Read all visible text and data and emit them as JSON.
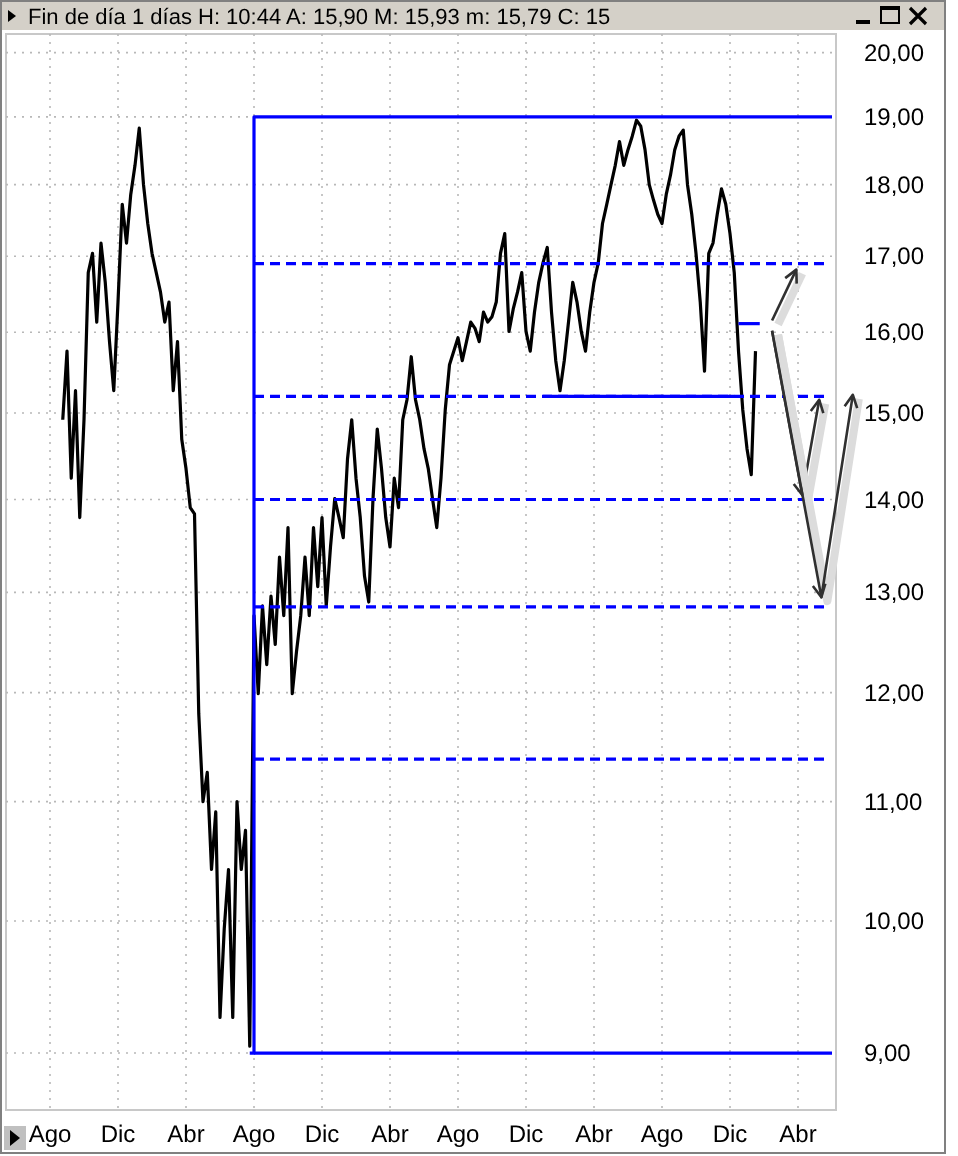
{
  "chart_data": {
    "type": "line",
    "title": "Fin de día 1 días H: 10:44 A: 15,90 M: 15,93 m: 15,79 C: 15",
    "categories": [
      "Ago",
      null,
      null,
      null,
      null,
      null,
      null,
      null,
      null,
      null,
      null,
      null,
      null,
      null,
      null,
      null,
      "Dic",
      null,
      null,
      null,
      null,
      null,
      null,
      null,
      null,
      null,
      null,
      null,
      null,
      null,
      null,
      null,
      "Abr",
      null,
      null,
      null,
      null,
      null,
      null,
      null,
      null,
      null,
      null,
      null,
      null,
      null,
      null,
      null,
      "Ago",
      null,
      null,
      null,
      null,
      null,
      null,
      null,
      null,
      null,
      null,
      null,
      null,
      null,
      null,
      null,
      "Dic",
      null,
      null,
      null,
      null,
      null,
      null,
      null,
      null,
      null,
      null,
      null,
      null,
      null,
      null,
      null,
      "Abr",
      null,
      null,
      null,
      null,
      null,
      null,
      null,
      null,
      null,
      null,
      null,
      null,
      null,
      null,
      null,
      "Ago",
      null,
      null,
      null,
      null,
      null,
      null,
      null,
      null,
      null,
      null,
      null,
      null,
      null,
      null,
      null,
      "Dic",
      null,
      null,
      null,
      null,
      null,
      null,
      null,
      null,
      null,
      null,
      null,
      null,
      null,
      null,
      null,
      "Abr",
      null,
      null,
      null,
      null,
      null,
      null,
      null,
      null,
      null,
      null,
      null,
      null,
      null,
      null,
      null,
      "Ago",
      null,
      null,
      null,
      null,
      null,
      null,
      null,
      null,
      null,
      null,
      null,
      null,
      null,
      null,
      null,
      "Dic",
      null,
      null,
      null,
      null,
      null,
      null,
      null,
      null,
      null,
      null,
      null,
      null,
      null,
      null,
      null,
      "Abr",
      null,
      null,
      null,
      null,
      null,
      null,
      null,
      null
    ],
    "ylim": [
      8.6,
      20.3
    ],
    "yticks": [
      {
        "value": 9,
        "label": "9,00"
      },
      {
        "value": 10,
        "label": "10,00"
      },
      {
        "value": 11,
        "label": "11,00"
      },
      {
        "value": 12,
        "label": "12,00"
      },
      {
        "value": 13,
        "label": "13,00"
      },
      {
        "value": 14,
        "label": "14,00"
      },
      {
        "value": 15,
        "label": "15,00"
      },
      {
        "value": 16,
        "label": "16,00"
      },
      {
        "value": 17,
        "label": "17,00"
      },
      {
        "value": 18,
        "label": "18,00"
      },
      {
        "value": 19,
        "label": "19,00"
      },
      {
        "value": 20,
        "label": "20,00"
      }
    ],
    "log": true,
    "grid": true,
    "series": [
      {
        "color": "#000000",
        "line_style": "solid",
        "values": [
          null,
          null,
          null,
          14.92,
          15.76,
          14.24,
          15.27,
          13.8,
          14.92,
          16.78,
          17.04,
          16.13,
          17.18,
          16.65,
          15.88,
          15.27,
          16.39,
          17.72,
          17.18,
          17.86,
          18.28,
          18.83,
          18.0,
          17.45,
          17.04,
          16.78,
          16.52,
          16.13,
          16.39,
          15.27,
          15.88,
          14.69,
          14.35,
          13.91,
          13.84,
          11.8,
          11.0,
          11.26,
          10.42,
          10.91,
          9.26,
          9.94,
          10.42,
          9.26,
          11.0,
          10.42,
          10.75,
          9.05,
          12.76,
          11.99,
          12.86,
          12.27,
          12.96,
          12.47,
          13.37,
          12.76,
          13.69,
          11.99,
          12.4,
          12.76,
          13.37,
          12.76,
          13.69,
          13.06,
          13.8,
          12.86,
          13.48,
          14.01,
          13.8,
          13.58,
          14.46,
          14.92,
          14.24,
          13.8,
          13.17,
          12.9,
          14.01,
          14.81,
          14.35,
          13.8,
          13.48,
          14.24,
          13.91,
          14.92,
          15.16,
          15.69,
          15.16,
          14.92,
          14.58,
          14.35,
          14.01,
          13.69,
          14.24,
          15.04,
          15.59,
          15.76,
          15.93,
          15.64,
          15.88,
          16.13,
          16.05,
          15.88,
          16.26,
          16.13,
          16.2,
          16.39,
          17.04,
          17.31,
          16.01,
          16.3,
          16.52,
          16.78,
          16.01,
          15.76,
          16.26,
          16.65,
          16.91,
          17.12,
          16.26,
          15.64,
          15.27,
          15.64,
          16.13,
          16.65,
          16.39,
          16.01,
          15.76,
          16.26,
          16.65,
          16.91,
          17.45,
          17.72,
          18.0,
          18.28,
          18.63,
          18.28,
          18.51,
          18.71,
          18.95,
          18.86,
          18.51,
          18.0,
          17.78,
          17.58,
          17.45,
          17.86,
          18.14,
          18.51,
          18.71,
          18.8,
          18.0,
          17.58,
          17.04,
          16.39,
          15.51,
          17.04,
          17.18,
          17.58,
          17.94,
          17.72,
          17.31,
          16.78,
          15.76,
          15.04,
          14.58,
          14.28,
          15.76,
          null,
          null,
          null,
          null,
          null,
          null,
          null,
          null,
          null,
          null,
          null,
          null,
          null,
          null,
          null,
          null,
          null,
          null
        ]
      },
      {
        "type": "step",
        "color": "#0000ff",
        "line_style": "solid",
        "values": [
          null,
          null,
          null,
          null,
          null,
          null,
          null,
          null,
          null,
          null,
          null,
          null,
          null,
          null,
          null,
          null,
          null,
          null,
          null,
          null,
          null,
          null,
          null,
          null,
          null,
          null,
          null,
          null,
          null,
          null,
          null,
          null,
          null,
          null,
          null,
          null,
          null,
          null,
          null,
          null,
          null,
          null,
          null,
          null,
          null,
          null,
          null,
          9,
          19,
          19,
          19,
          19,
          19,
          19,
          19,
          19,
          19,
          19,
          19,
          19,
          19,
          19,
          19,
          19,
          19,
          19,
          19,
          19,
          19,
          19,
          19,
          19,
          19,
          19,
          19,
          19,
          19,
          19,
          19,
          19,
          19,
          19,
          19,
          19,
          19,
          19,
          19,
          19,
          19,
          19,
          19,
          19,
          19,
          19,
          19,
          19,
          19,
          19,
          19,
          19,
          19,
          19,
          19,
          19,
          19,
          19,
          19,
          19,
          19,
          19,
          19,
          19,
          19,
          19,
          19,
          19,
          19,
          19,
          19,
          19,
          19,
          19,
          19,
          19,
          19,
          19,
          19,
          19,
          19,
          19,
          19,
          19,
          19,
          19,
          19,
          19,
          19,
          19,
          19,
          19,
          19,
          19,
          19,
          19,
          19,
          19,
          19,
          19,
          19,
          19,
          19,
          19,
          19,
          19,
          19,
          19,
          19,
          19,
          19,
          19,
          19,
          19,
          19,
          19,
          19,
          19,
          19,
          19,
          19,
          19,
          19,
          19,
          19,
          19,
          19,
          19,
          19,
          19,
          19,
          19,
          19,
          19,
          19,
          19,
          19
        ]
      },
      {
        "color": "#0000ff",
        "line_style": "solid",
        "values": [
          null,
          null,
          null,
          null,
          null,
          null,
          null,
          null,
          null,
          null,
          null,
          null,
          null,
          null,
          null,
          null,
          null,
          null,
          null,
          null,
          null,
          null,
          null,
          null,
          null,
          null,
          null,
          null,
          null,
          null,
          null,
          null,
          null,
          null,
          null,
          null,
          null,
          null,
          null,
          null,
          null,
          null,
          null,
          null,
          null,
          null,
          null,
          null,
          9,
          9,
          9,
          9,
          9,
          9,
          9,
          9,
          9,
          9,
          9,
          9,
          9,
          9,
          9,
          9,
          9,
          9,
          9,
          9,
          9,
          9,
          9,
          9,
          9,
          9,
          9,
          9,
          9,
          9,
          9,
          9,
          9,
          9,
          9,
          9,
          9,
          9,
          9,
          9,
          9,
          9,
          9,
          9,
          9,
          9,
          9,
          9,
          9,
          9,
          9,
          9,
          9,
          9,
          9,
          9,
          9,
          9,
          9,
          9,
          9,
          9,
          9,
          9,
          9,
          9,
          9,
          9,
          9,
          9,
          9,
          9,
          9,
          9,
          9,
          9,
          9,
          9,
          9,
          9,
          9,
          9,
          9,
          9,
          9,
          9,
          9,
          9,
          9,
          9,
          9,
          9,
          9,
          9,
          9,
          9,
          9,
          9,
          9,
          9,
          9,
          9,
          9,
          9,
          9,
          9,
          9,
          9,
          9,
          9,
          9,
          9,
          9,
          9,
          9,
          9,
          9,
          9,
          9,
          9,
          9,
          9,
          9,
          9,
          9,
          9,
          9,
          9,
          9,
          9,
          9,
          9,
          9,
          9,
          9,
          9,
          9
        ]
      },
      {
        "color": "#0000ff",
        "line_style": "dashed",
        "values": [
          null,
          null,
          null,
          null,
          null,
          null,
          null,
          null,
          null,
          null,
          null,
          null,
          null,
          null,
          null,
          null,
          null,
          null,
          null,
          null,
          null,
          null,
          null,
          null,
          null,
          null,
          null,
          null,
          null,
          null,
          null,
          null,
          null,
          null,
          null,
          null,
          null,
          null,
          null,
          null,
          null,
          null,
          null,
          null,
          null,
          null,
          null,
          null,
          16.9,
          16.9,
          16.9,
          16.9,
          16.9,
          16.9,
          16.9,
          16.9,
          16.9,
          16.9,
          16.9,
          16.9,
          16.9,
          16.9,
          16.9,
          16.9,
          16.9,
          16.9,
          16.9,
          16.9,
          16.9,
          16.9,
          16.9,
          16.9,
          16.9,
          16.9,
          16.9,
          16.9,
          16.9,
          16.9,
          16.9,
          16.9,
          16.9,
          16.9,
          16.9,
          16.9,
          16.9,
          16.9,
          16.9,
          16.9,
          16.9,
          16.9,
          16.9,
          16.9,
          16.9,
          16.9,
          16.9,
          16.9,
          16.9,
          16.9,
          16.9,
          16.9,
          16.9,
          16.9,
          16.9,
          16.9,
          16.9,
          16.9,
          16.9,
          16.9,
          16.9,
          16.9,
          16.9,
          16.9,
          16.9,
          16.9,
          16.9,
          16.9,
          16.9,
          16.9,
          16.9,
          16.9,
          16.9,
          16.9,
          16.9,
          16.9,
          16.9,
          16.9,
          16.9,
          16.9,
          16.9,
          16.9,
          16.9,
          16.9,
          16.9,
          16.9,
          16.9,
          16.9,
          16.9,
          16.9,
          16.9,
          16.9,
          16.9,
          16.9,
          16.9,
          16.9,
          16.9,
          16.9,
          16.9,
          16.9,
          16.9,
          16.9,
          16.9,
          16.9,
          16.9,
          16.9,
          16.9,
          16.9,
          16.9,
          16.9,
          16.9,
          16.9,
          16.9,
          16.9,
          16.9,
          16.9,
          16.9,
          16.9,
          16.9,
          16.9,
          16.9,
          16.9,
          16.9,
          16.9,
          16.9,
          16.9,
          16.9,
          16.9,
          16.9,
          16.9,
          16.9,
          16.9,
          16.9,
          16.9,
          16.9,
          16.9,
          null
        ]
      },
      {
        "color": "#0000ff",
        "line_style": "dashed",
        "values": [
          null,
          null,
          null,
          null,
          null,
          null,
          null,
          null,
          null,
          null,
          null,
          null,
          null,
          null,
          null,
          null,
          null,
          null,
          null,
          null,
          null,
          null,
          null,
          null,
          null,
          null,
          null,
          null,
          null,
          null,
          null,
          null,
          null,
          null,
          null,
          null,
          null,
          null,
          null,
          null,
          null,
          null,
          null,
          null,
          null,
          null,
          null,
          null,
          15.2,
          15.2,
          15.2,
          15.2,
          15.2,
          15.2,
          15.2,
          15.2,
          15.2,
          15.2,
          15.2,
          15.2,
          15.2,
          15.2,
          15.2,
          15.2,
          15.2,
          15.2,
          15.2,
          15.2,
          15.2,
          15.2,
          15.2,
          15.2,
          15.2,
          15.2,
          15.2,
          15.2,
          15.2,
          15.2,
          15.2,
          15.2,
          15.2,
          15.2,
          15.2,
          15.2,
          15.2,
          15.2,
          15.2,
          15.2,
          15.2,
          15.2,
          15.2,
          15.2,
          15.2,
          15.2,
          15.2,
          15.2,
          15.2,
          15.2,
          15.2,
          15.2,
          15.2,
          15.2,
          15.2,
          15.2,
          15.2,
          15.2,
          15.2,
          15.2,
          15.2,
          15.2,
          15.2,
          15.2,
          15.2,
          15.2,
          15.2,
          15.2,
          15.2,
          15.2,
          15.2,
          15.2,
          15.2,
          15.2,
          15.2,
          15.2,
          15.2,
          15.2,
          15.2,
          15.2,
          15.2,
          15.2,
          15.2,
          15.2,
          15.2,
          15.2,
          15.2,
          15.2,
          15.2,
          15.2,
          15.2,
          15.2,
          15.2,
          15.2,
          15.2,
          15.2,
          15.2,
          15.2,
          15.2,
          15.2,
          15.2,
          15.2,
          15.2,
          15.2,
          15.2,
          15.2,
          15.2,
          15.2,
          15.2,
          15.2,
          15.2,
          15.2,
          15.2,
          15.2,
          15.2,
          15.2,
          15.2,
          15.2,
          15.2,
          15.2,
          15.2,
          15.2,
          15.2,
          15.2,
          15.2,
          15.2,
          15.2,
          15.2,
          15.2,
          15.2,
          15.2,
          15.2,
          15.2,
          15.2,
          15.2,
          15.2,
          null
        ]
      },
      {
        "color": "#0000ff",
        "line_style": "dashed",
        "values": [
          null,
          null,
          null,
          null,
          null,
          null,
          null,
          null,
          null,
          null,
          null,
          null,
          null,
          null,
          null,
          null,
          null,
          null,
          null,
          null,
          null,
          null,
          null,
          null,
          null,
          null,
          null,
          null,
          null,
          null,
          null,
          null,
          null,
          null,
          null,
          null,
          null,
          null,
          null,
          null,
          null,
          null,
          null,
          null,
          null,
          null,
          null,
          null,
          14,
          14,
          14,
          14,
          14,
          14,
          14,
          14,
          14,
          14,
          14,
          14,
          14,
          14,
          14,
          14,
          14,
          14,
          14,
          14,
          14,
          14,
          14,
          14,
          14,
          14,
          14,
          14,
          14,
          14,
          14,
          14,
          14,
          14,
          14,
          14,
          14,
          14,
          14,
          14,
          14,
          14,
          14,
          14,
          14,
          14,
          14,
          14,
          14,
          14,
          14,
          14,
          14,
          14,
          14,
          14,
          14,
          14,
          14,
          14,
          14,
          14,
          14,
          14,
          14,
          14,
          14,
          14,
          14,
          14,
          14,
          14,
          14,
          14,
          14,
          14,
          14,
          14,
          14,
          14,
          14,
          14,
          14,
          14,
          14,
          14,
          14,
          14,
          14,
          14,
          14,
          14,
          14,
          14,
          14,
          14,
          14,
          14,
          14,
          14,
          14,
          14,
          14,
          14,
          14,
          14,
          14,
          14,
          14,
          14,
          14,
          14,
          14,
          14,
          14,
          14,
          14,
          14,
          14,
          14,
          14,
          14,
          14,
          14,
          14,
          14,
          14,
          14,
          14,
          14,
          14,
          14,
          14,
          14,
          14,
          14,
          null
        ]
      },
      {
        "color": "#0000ff",
        "line_style": "dashed",
        "values": [
          null,
          null,
          null,
          null,
          null,
          null,
          null,
          null,
          null,
          null,
          null,
          null,
          null,
          null,
          null,
          null,
          null,
          null,
          null,
          null,
          null,
          null,
          null,
          null,
          null,
          null,
          null,
          null,
          null,
          null,
          null,
          null,
          null,
          null,
          null,
          null,
          null,
          null,
          null,
          null,
          null,
          null,
          null,
          null,
          null,
          null,
          null,
          null,
          12.85,
          12.85,
          12.85,
          12.85,
          12.85,
          12.85,
          12.85,
          12.85,
          12.85,
          12.85,
          12.85,
          12.85,
          12.85,
          12.85,
          12.85,
          12.85,
          12.85,
          12.85,
          12.85,
          12.85,
          12.85,
          12.85,
          12.85,
          12.85,
          12.85,
          12.85,
          12.85,
          12.85,
          12.85,
          12.85,
          12.85,
          12.85,
          12.85,
          12.85,
          12.85,
          12.85,
          12.85,
          12.85,
          12.85,
          12.85,
          12.85,
          12.85,
          12.85,
          12.85,
          12.85,
          12.85,
          12.85,
          12.85,
          12.85,
          12.85,
          12.85,
          12.85,
          12.85,
          12.85,
          12.85,
          12.85,
          12.85,
          12.85,
          12.85,
          12.85,
          12.85,
          12.85,
          12.85,
          12.85,
          12.85,
          12.85,
          12.85,
          12.85,
          12.85,
          12.85,
          12.85,
          12.85,
          12.85,
          12.85,
          12.85,
          12.85,
          12.85,
          12.85,
          12.85,
          12.85,
          12.85,
          12.85,
          12.85,
          12.85,
          12.85,
          12.85,
          12.85,
          12.85,
          12.85,
          12.85,
          12.85,
          12.85,
          12.85,
          12.85,
          12.85,
          12.85,
          12.85,
          12.85,
          12.85,
          12.85,
          12.85,
          12.85,
          12.85,
          12.85,
          12.85,
          12.85,
          12.85,
          12.85,
          12.85,
          12.85,
          12.85,
          12.85,
          12.85,
          12.85,
          12.85,
          12.85,
          12.85,
          12.85,
          12.85,
          12.85,
          12.85,
          12.85,
          12.85,
          12.85,
          12.85,
          12.85,
          12.85,
          12.85,
          12.85,
          12.85,
          12.85,
          12.85,
          12.85,
          12.85,
          12.85,
          12.85,
          null
        ]
      },
      {
        "color": "#0000ff",
        "line_style": "dashed",
        "values": [
          null,
          null,
          null,
          null,
          null,
          null,
          null,
          null,
          null,
          null,
          null,
          null,
          null,
          null,
          null,
          null,
          null,
          null,
          null,
          null,
          null,
          null,
          null,
          null,
          null,
          null,
          null,
          null,
          null,
          null,
          null,
          null,
          null,
          null,
          null,
          null,
          null,
          null,
          null,
          null,
          null,
          null,
          null,
          null,
          null,
          null,
          null,
          null,
          11.38,
          11.38,
          11.38,
          11.38,
          11.38,
          11.38,
          11.38,
          11.38,
          11.38,
          11.38,
          11.38,
          11.38,
          11.38,
          11.38,
          11.38,
          11.38,
          11.38,
          11.38,
          11.38,
          11.38,
          11.38,
          11.38,
          11.38,
          11.38,
          11.38,
          11.38,
          11.38,
          11.38,
          11.38,
          11.38,
          11.38,
          11.38,
          11.38,
          11.38,
          11.38,
          11.38,
          11.38,
          11.38,
          11.38,
          11.38,
          11.38,
          11.38,
          11.38,
          11.38,
          11.38,
          11.38,
          11.38,
          11.38,
          11.38,
          11.38,
          11.38,
          11.38,
          11.38,
          11.38,
          11.38,
          11.38,
          11.38,
          11.38,
          11.38,
          11.38,
          11.38,
          11.38,
          11.38,
          11.38,
          11.38,
          11.38,
          11.38,
          11.38,
          11.38,
          11.38,
          11.38,
          11.38,
          11.38,
          11.38,
          11.38,
          11.38,
          11.38,
          11.38,
          11.38,
          11.38,
          11.38,
          11.38,
          11.38,
          11.38,
          11.38,
          11.38,
          11.38,
          11.38,
          11.38,
          11.38,
          11.38,
          11.38,
          11.38,
          11.38,
          11.38,
          11.38,
          11.38,
          11.38,
          11.38,
          11.38,
          11.38,
          11.38,
          11.38,
          11.38,
          11.38,
          11.38,
          11.38,
          11.38,
          11.38,
          11.38,
          11.38,
          11.38,
          11.38,
          11.38,
          11.38,
          11.38,
          11.38,
          11.38,
          11.38,
          11.38,
          11.38,
          11.38,
          11.38,
          11.38,
          11.38,
          11.38,
          11.38,
          11.38,
          11.38,
          11.38,
          11.38,
          11.38,
          11.38,
          11.38,
          11.38,
          11.38,
          null
        ]
      },
      {
        "color": "#0000ff",
        "line_style": "solid",
        "values": [
          null,
          null,
          null,
          null,
          null,
          null,
          null,
          null,
          null,
          null,
          null,
          null,
          null,
          null,
          null,
          null,
          null,
          null,
          null,
          null,
          null,
          null,
          null,
          null,
          null,
          null,
          null,
          null,
          null,
          null,
          null,
          null,
          null,
          null,
          null,
          null,
          null,
          null,
          null,
          null,
          null,
          null,
          null,
          null,
          null,
          null,
          null,
          null,
          null,
          null,
          null,
          null,
          null,
          null,
          null,
          null,
          null,
          null,
          null,
          null,
          null,
          null,
          null,
          null,
          null,
          null,
          null,
          null,
          null,
          null,
          null,
          null,
          null,
          null,
          null,
          null,
          null,
          null,
          null,
          null,
          null,
          null,
          null,
          null,
          null,
          null,
          null,
          null,
          null,
          null,
          null,
          null,
          null,
          null,
          null,
          null,
          null,
          null,
          null,
          null,
          null,
          null,
          null,
          null,
          null,
          null,
          null,
          null,
          null,
          null,
          null,
          null,
          null,
          null,
          null,
          null,
          15.2,
          15.2,
          15.2,
          15.2,
          15.2,
          15.2,
          15.2,
          15.2,
          15.2,
          15.2,
          15.2,
          15.2,
          15.2,
          15.2,
          15.2,
          15.2,
          15.2,
          15.2,
          15.2,
          15.2,
          15.2,
          15.2,
          15.2,
          15.2,
          15.2,
          15.2,
          15.2,
          15.2,
          15.2,
          15.2,
          15.2,
          15.2,
          15.2,
          15.2,
          15.2,
          15.2,
          15.2,
          15.2,
          15.2,
          15.2,
          15.2,
          15.2,
          15.2,
          15.2,
          15.2,
          15.2,
          null,
          null,
          null,
          null,
          null,
          null,
          null,
          null,
          null,
          null,
          null,
          null,
          null,
          null,
          null,
          null,
          null,
          null,
          null,
          null,
          null,
          null,
          null
        ]
      },
      {
        "color": "#0000ff",
        "line_style": "solid",
        "values": [
          null,
          null,
          null,
          null,
          null,
          null,
          null,
          null,
          null,
          null,
          null,
          null,
          null,
          null,
          null,
          null,
          null,
          null,
          null,
          null,
          null,
          null,
          null,
          null,
          null,
          null,
          null,
          null,
          null,
          null,
          null,
          null,
          null,
          null,
          null,
          null,
          null,
          null,
          null,
          null,
          null,
          null,
          null,
          null,
          null,
          null,
          null,
          null,
          null,
          null,
          null,
          null,
          null,
          null,
          null,
          null,
          null,
          null,
          null,
          null,
          null,
          null,
          null,
          null,
          null,
          null,
          null,
          null,
          null,
          null,
          null,
          null,
          null,
          null,
          null,
          null,
          null,
          null,
          null,
          null,
          null,
          null,
          null,
          null,
          null,
          null,
          null,
          null,
          null,
          null,
          null,
          null,
          null,
          null,
          null,
          null,
          null,
          null,
          null,
          null,
          null,
          null,
          null,
          null,
          null,
          null,
          null,
          null,
          null,
          null,
          null,
          null,
          null,
          null,
          null,
          null,
          null,
          null,
          null,
          null,
          null,
          null,
          null,
          null,
          null,
          null,
          null,
          null,
          null,
          null,
          null,
          null,
          null,
          null,
          null,
          null,
          null,
          null,
          null,
          null,
          null,
          null,
          null,
          null,
          null,
          null,
          null,
          null,
          null,
          null,
          null,
          null,
          null,
          null,
          null,
          null,
          null,
          null,
          null,
          null,
          null,
          null,
          16.11,
          16.11,
          16.11,
          16.11,
          16.11,
          16.11,
          null,
          null,
          null,
          null,
          null,
          null,
          null,
          null,
          null,
          null,
          null,
          null,
          null,
          null,
          null,
          null,
          null
        ]
      }
    ]
  }
}
